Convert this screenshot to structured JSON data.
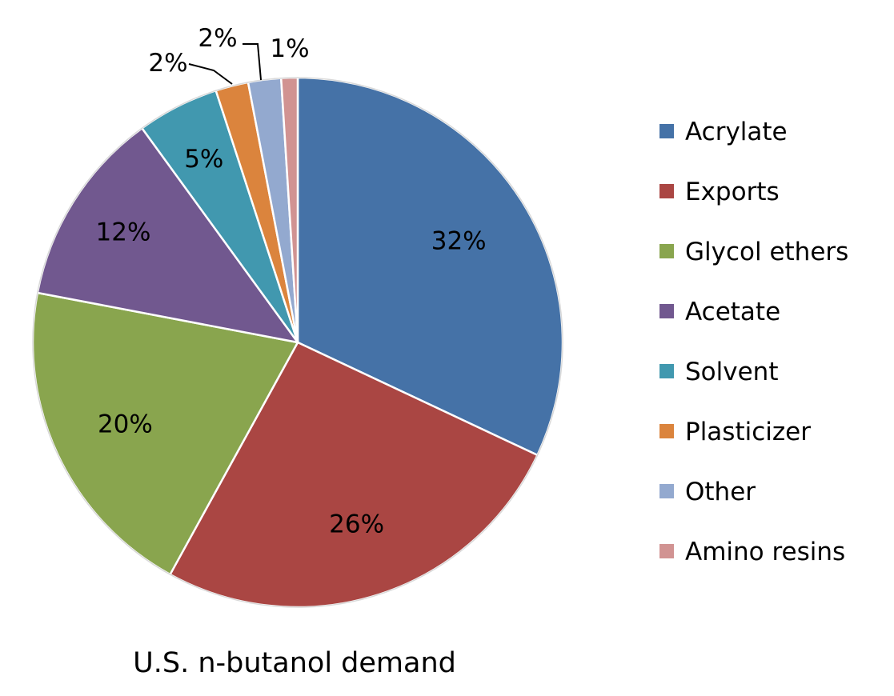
{
  "chart_data": {
    "type": "pie",
    "title": "U.S. n-butanol demand",
    "legend_position": "right",
    "slices": [
      {
        "label": "Acrylate",
        "value": 32,
        "display": "32%",
        "color": "#4572A7"
      },
      {
        "label": "Exports",
        "value": 26,
        "display": "26%",
        "color": "#AA4643"
      },
      {
        "label": "Glycol ethers",
        "value": 20,
        "display": "20%",
        "color": "#89A54E"
      },
      {
        "label": "Acetate",
        "value": 12,
        "display": "12%",
        "color": "#71588F"
      },
      {
        "label": "Solvent",
        "value": 5,
        "display": "5%",
        "color": "#4198AF"
      },
      {
        "label": "Plasticizer",
        "value": 2,
        "display": "2%",
        "color": "#DB843D"
      },
      {
        "label": "Other",
        "value": 2,
        "display": "2%",
        "color": "#93A9CF"
      },
      {
        "label": "Amino resins",
        "value": 1,
        "display": "1%",
        "color": "#D19392"
      }
    ]
  }
}
